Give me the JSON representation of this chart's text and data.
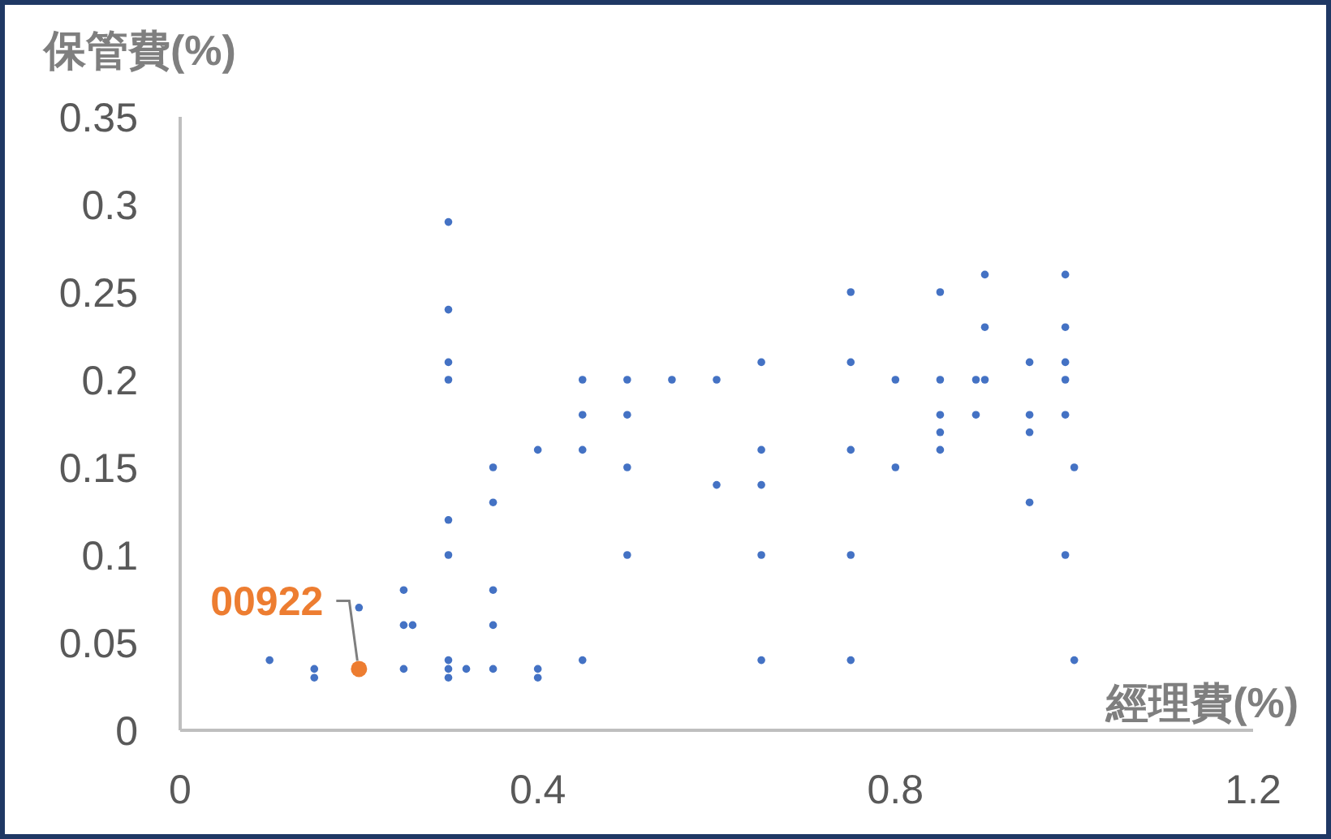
{
  "chart_data": {
    "type": "scatter",
    "xlabel": "經理費(%)",
    "ylabel": "保管費(%)",
    "xlim": [
      0,
      1.2
    ],
    "ylim": [
      0,
      0.35
    ],
    "xticks": [
      0,
      0.4,
      0.8,
      1.2
    ],
    "yticks": [
      0,
      0.05,
      0.1,
      0.15,
      0.2,
      0.25,
      0.3,
      0.35
    ],
    "marker": "circle",
    "series": [
      {
        "color": "#4472c4",
        "x": [
          0.1,
          0.15,
          0.15,
          0.2,
          0.25,
          0.25,
          0.25,
          0.26,
          0.3,
          0.3,
          0.3,
          0.3,
          0.3,
          0.3,
          0.3,
          0.3,
          0.3,
          0.32,
          0.35,
          0.35,
          0.35,
          0.35,
          0.35,
          0.4,
          0.4,
          0.4,
          0.45,
          0.45,
          0.45,
          0.45,
          0.5,
          0.5,
          0.5,
          0.5,
          0.55,
          0.6,
          0.6,
          0.65,
          0.65,
          0.65,
          0.65,
          0.65,
          0.75,
          0.75,
          0.75,
          0.75,
          0.75,
          0.8,
          0.8,
          0.85,
          0.85,
          0.85,
          0.85,
          0.85,
          0.89,
          0.89,
          0.9,
          0.9,
          0.9,
          0.95,
          0.95,
          0.95,
          0.95,
          0.99,
          0.99,
          0.99,
          0.99,
          0.99,
          0.99,
          1.0,
          1.0
        ],
        "values": [
          0.04,
          0.035,
          0.03,
          0.07,
          0.08,
          0.06,
          0.035,
          0.06,
          0.29,
          0.24,
          0.21,
          0.2,
          0.12,
          0.1,
          0.04,
          0.035,
          0.03,
          0.035,
          0.15,
          0.13,
          0.08,
          0.06,
          0.035,
          0.16,
          0.035,
          0.03,
          0.2,
          0.18,
          0.16,
          0.04,
          0.2,
          0.18,
          0.15,
          0.1,
          0.2,
          0.2,
          0.14,
          0.21,
          0.16,
          0.14,
          0.1,
          0.04,
          0.25,
          0.21,
          0.16,
          0.1,
          0.04,
          0.2,
          0.15,
          0.25,
          0.2,
          0.18,
          0.17,
          0.16,
          0.2,
          0.18,
          0.26,
          0.23,
          0.2,
          0.21,
          0.18,
          0.17,
          0.13,
          0.26,
          0.23,
          0.21,
          0.2,
          0.18,
          0.1,
          0.15,
          0.04
        ]
      },
      {
        "color": "#ed7d31",
        "x": [
          0.2
        ],
        "values": [
          0.035
        ]
      }
    ],
    "annotations": [
      {
        "text": "00922",
        "x": 0.2,
        "y": 0.035
      }
    ]
  }
}
